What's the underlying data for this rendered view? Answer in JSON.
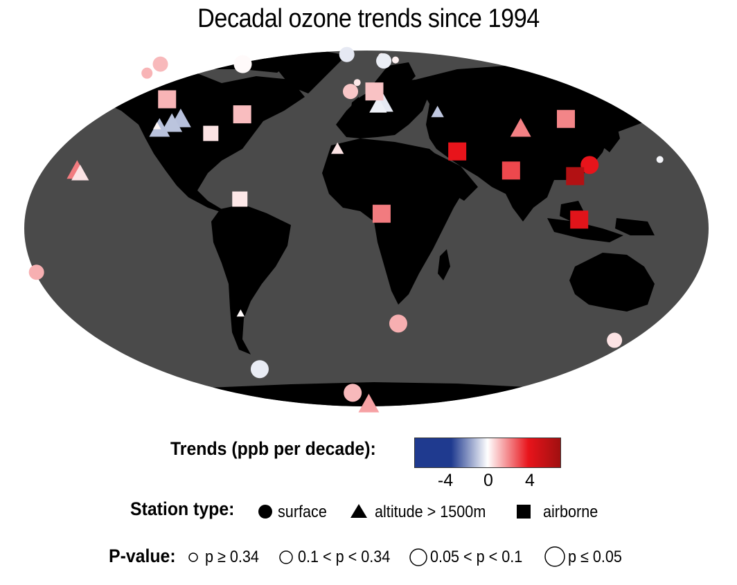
{
  "title": "Decadal ozone trends since 1994",
  "legend": {
    "trend_label": "Trends (ppb per decade):",
    "trend_ticks": [
      "-4",
      "0",
      "4"
    ],
    "trend_colors": [
      "#1f3a8f",
      "#ffffff",
      "#e8141b",
      "#a01010"
    ],
    "station_label": "Station type:",
    "station_types": [
      {
        "name": "surface",
        "icon": "circle-icon"
      },
      {
        "name": "altitude > 1500m",
        "icon": "triangle-icon"
      },
      {
        "name": "airborne",
        "icon": "square-icon"
      }
    ],
    "pvalue_label": "P-value:",
    "pvalues": [
      "p ≥ 0.34",
      "0.1 < p < 0.34",
      "0.05 < p < 0.1",
      "p ≤ 0.05"
    ]
  },
  "map": {
    "ocean_color": "#4a4a4a",
    "land_color": "#000000",
    "stations": [
      {
        "type": "circle",
        "lon": -90,
        "lat": 71,
        "trend": 0.1,
        "p": 4
      },
      {
        "type": "circle",
        "lon": -150,
        "lat": 71,
        "trend": 1.5,
        "p": 3
      },
      {
        "type": "circle",
        "lon": -150,
        "lat": 64,
        "trend": 1.6,
        "p": 2
      },
      {
        "type": "circle",
        "lon": -16,
        "lat": 82,
        "trend": -0.8,
        "p": 3
      },
      {
        "type": "circle",
        "lon": 12,
        "lat": 79,
        "trend": 0.4,
        "p": 1
      },
      {
        "type": "circle",
        "lon": 13,
        "lat": 74,
        "trend": -0.6,
        "p": 3
      },
      {
        "type": "circle",
        "lon": 22,
        "lat": 75,
        "trend": 0.3,
        "p": 1
      },
      {
        "type": "circle",
        "lon": -10,
        "lat": 53,
        "trend": 1.2,
        "p": 3
      },
      {
        "type": "circle",
        "lon": -6,
        "lat": 58,
        "trend": 0.5,
        "p": 1
      },
      {
        "type": "circle",
        "lon": -176,
        "lat": -15,
        "trend": 1.7,
        "p": 3
      },
      {
        "type": "circle",
        "lon": 18,
        "lat": -34,
        "trend": 1.7,
        "p": 4
      },
      {
        "type": "circle",
        "lon": -68,
        "lat": -55,
        "trend": -0.7,
        "p": 4
      },
      {
        "type": "circle",
        "lon": -10,
        "lat": -71,
        "trend": 1.5,
        "p": 4
      },
      {
        "type": "circle",
        "lon": 145,
        "lat": -41,
        "trend": 0.6,
        "p": 3
      },
      {
        "type": "circle",
        "lon": 160,
        "lat": 24,
        "trend": -0.3,
        "p": 1
      },
      {
        "type": "circle",
        "lon": 121,
        "lat": 22,
        "trend": 5.0,
        "p": 4
      },
      {
        "type": "triangle",
        "lon": -108,
        "lat": 40,
        "trend": -1.4,
        "p": 4
      },
      {
        "type": "triangle",
        "lon": -112,
        "lat": 38,
        "trend": -1.2,
        "p": 4
      },
      {
        "type": "triangle",
        "lon": -118,
        "lat": 36,
        "trend": -1.3,
        "p": 4
      },
      {
        "type": "triangle",
        "lon": -120,
        "lat": 37,
        "trend": 0.2,
        "p": 1
      },
      {
        "type": "triangle",
        "lon": 10,
        "lat": 47,
        "trend": -0.8,
        "p": 4
      },
      {
        "type": "triangle",
        "lon": 7,
        "lat": 46,
        "trend": -0.5,
        "p": 3
      },
      {
        "type": "triangle",
        "lon": 42,
        "lat": 43,
        "trend": -1.0,
        "p": 2
      },
      {
        "type": "triangle",
        "lon": -16,
        "lat": 28,
        "trend": 0.6,
        "p": 2
      },
      {
        "type": "triangle",
        "lon": 88,
        "lat": 36,
        "trend": 2.7,
        "p": 4
      },
      {
        "type": "triangle",
        "lon": -156,
        "lat": 20,
        "trend": 2.8,
        "p": 4
      },
      {
        "type": "triangle",
        "lon": -154,
        "lat": 19,
        "trend": 0.6,
        "p": 3
      },
      {
        "type": "triangle",
        "lon": -70,
        "lat": -30,
        "trend": 0.1,
        "p": 1
      },
      {
        "type": "triangle",
        "lon": 2,
        "lat": -85,
        "trend": 2.0,
        "p": 4
      },
      {
        "type": "square",
        "lon": -122,
        "lat": 49,
        "trend": 1.6,
        "p": 4
      },
      {
        "type": "square",
        "lon": -73,
        "lat": 42,
        "trend": 1.4,
        "p": 4
      },
      {
        "type": "square",
        "lon": -88,
        "lat": 34,
        "trend": 0.6,
        "p": 3
      },
      {
        "type": "square",
        "lon": 5,
        "lat": 53,
        "trend": 1.3,
        "p": 4
      },
      {
        "type": "square",
        "lon": -67,
        "lat": 10,
        "trend": 0.5,
        "p": 3
      },
      {
        "type": "square",
        "lon": 8,
        "lat": 5,
        "trend": 2.8,
        "p": 4
      },
      {
        "type": "square",
        "lon": 50,
        "lat": 27,
        "trend": 5.0,
        "p": 4
      },
      {
        "type": "square",
        "lon": 78,
        "lat": 20,
        "trend": 3.9,
        "p": 4
      },
      {
        "type": "square",
        "lon": 116,
        "lat": 40,
        "trend": 2.6,
        "p": 4
      },
      {
        "type": "square",
        "lon": 112,
        "lat": 18,
        "trend": 6.5,
        "p": 4
      },
      {
        "type": "square",
        "lon": 112,
        "lat": 3,
        "trend": 5.2,
        "p": 4
      }
    ]
  }
}
